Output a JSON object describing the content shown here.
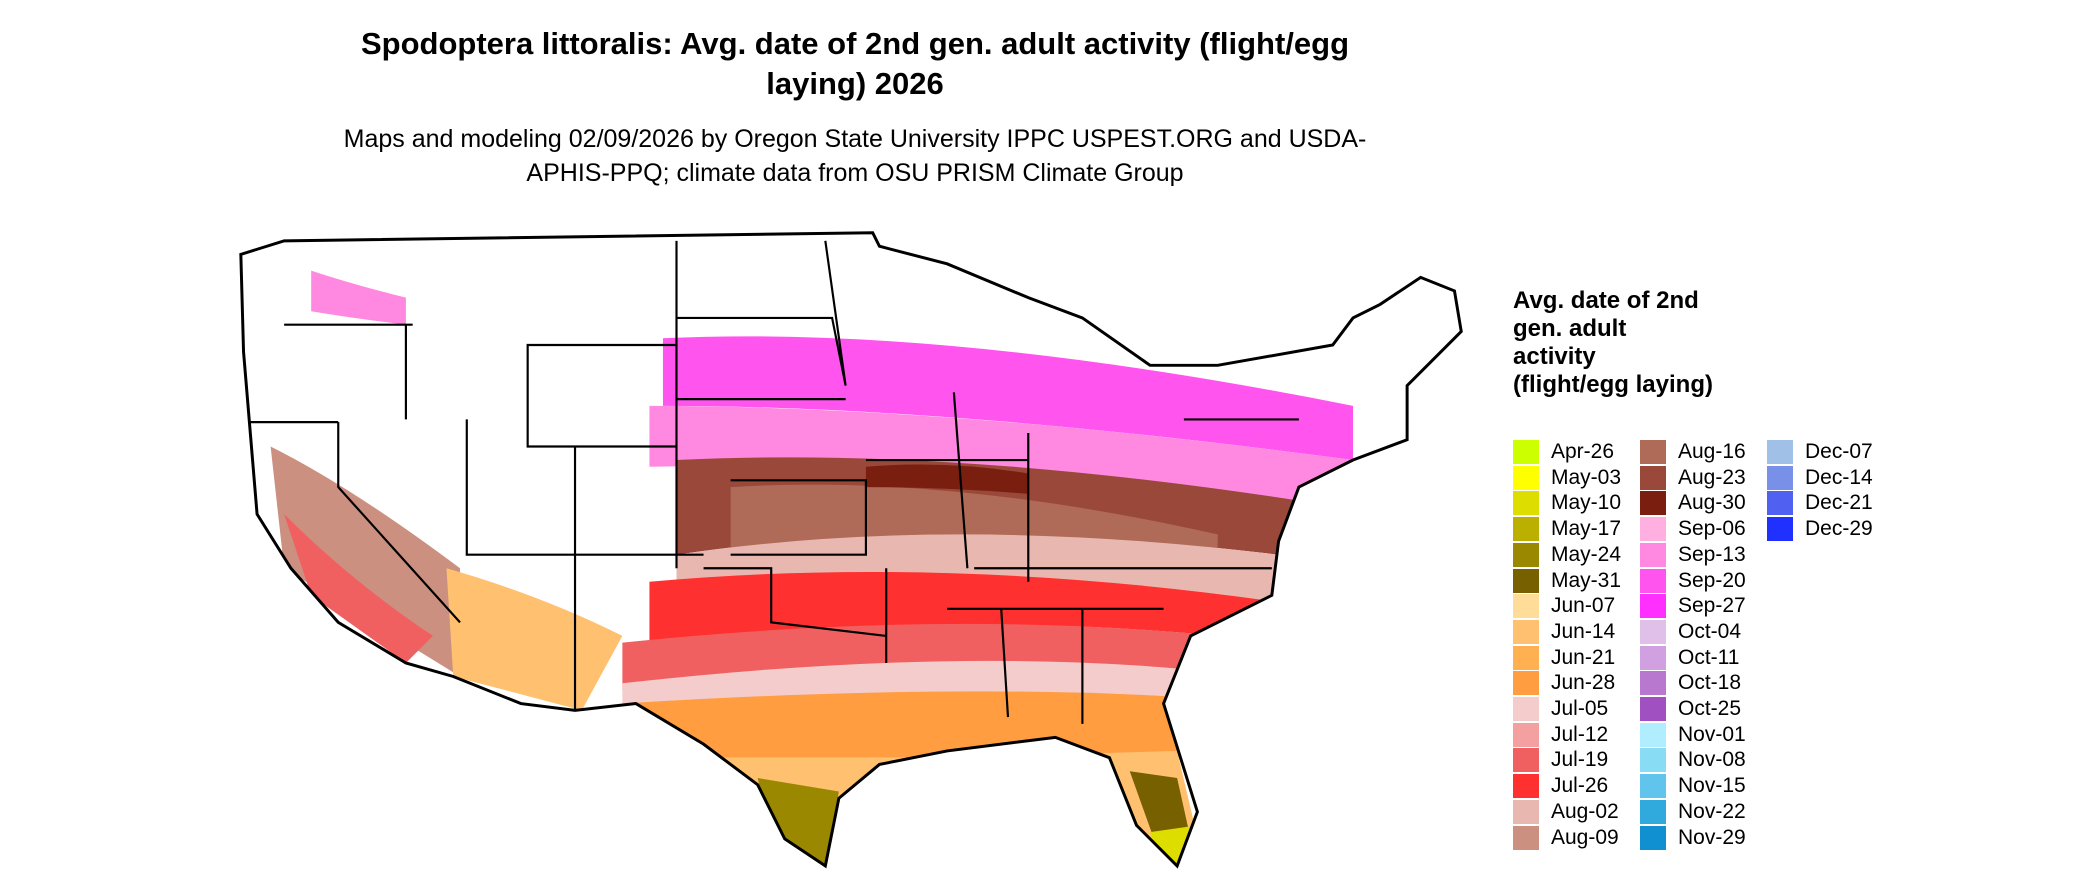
{
  "header": {
    "title": "Spodoptera littoralis: Avg. date of 2nd gen. adult activity (flight/egg laying) 2026",
    "subtitle": "Maps and modeling 02/09/2026 by Oregon State University IPPC USPEST.ORG and USDA-APHIS-PPQ; climate data from OSU PRISM Climate Group"
  },
  "legend": {
    "title": "Avg. date of 2nd gen. adult activity (flight/egg laying)",
    "items": [
      {
        "label": "Apr-26",
        "color": "#ccff00"
      },
      {
        "label": "May-03",
        "color": "#ffff00"
      },
      {
        "label": "May-10",
        "color": "#dddd00"
      },
      {
        "label": "May-17",
        "color": "#bbb000"
      },
      {
        "label": "May-24",
        "color": "#998800"
      },
      {
        "label": "May-31",
        "color": "#776000"
      },
      {
        "label": "Jun-07",
        "color": "#ffdd99"
      },
      {
        "label": "Jun-14",
        "color": "#ffc070"
      },
      {
        "label": "Jun-21",
        "color": "#ffb050"
      },
      {
        "label": "Jun-28",
        "color": "#ff9d40"
      },
      {
        "label": "Jul-05",
        "color": "#f4cccc"
      },
      {
        "label": "Jul-12",
        "color": "#f4a0a0"
      },
      {
        "label": "Jul-19",
        "color": "#f06060"
      },
      {
        "label": "Jul-26",
        "color": "#ff3030"
      },
      {
        "label": "Aug-02",
        "color": "#e8b8b0"
      },
      {
        "label": "Aug-09",
        "color": "#cc9080"
      },
      {
        "label": "Aug-16",
        "color": "#b06a58"
      },
      {
        "label": "Aug-23",
        "color": "#99483a"
      },
      {
        "label": "Aug-30",
        "color": "#7a1e10"
      },
      {
        "label": "Sep-06",
        "color": "#ffb0e0"
      },
      {
        "label": "Sep-13",
        "color": "#ff88e0"
      },
      {
        "label": "Sep-20",
        "color": "#ff55ee"
      },
      {
        "label": "Sep-27",
        "color": "#ff30ff"
      },
      {
        "label": "Oct-04",
        "color": "#e0c0e8"
      },
      {
        "label": "Oct-11",
        "color": "#d0a0e0"
      },
      {
        "label": "Oct-18",
        "color": "#b878d0"
      },
      {
        "label": "Oct-25",
        "color": "#a050c0"
      },
      {
        "label": "Nov-01",
        "color": "#b0eeff"
      },
      {
        "label": "Nov-08",
        "color": "#88ddf4"
      },
      {
        "label": "Nov-15",
        "color": "#60c4ec"
      },
      {
        "label": "Nov-22",
        "color": "#30aadd"
      },
      {
        "label": "Nov-29",
        "color": "#1090d0"
      },
      {
        "label": "Dec-07",
        "color": "#a0c0e8"
      },
      {
        "label": "Dec-14",
        "color": "#7890e8"
      },
      {
        "label": "Dec-21",
        "color": "#5060f0"
      },
      {
        "label": "Dec-29",
        "color": "#2030ff"
      }
    ]
  }
}
